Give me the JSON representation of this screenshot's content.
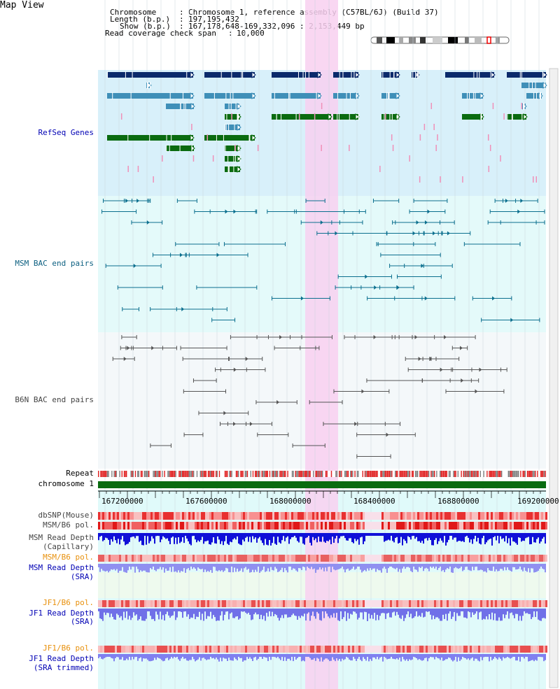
{
  "title": "Map View",
  "header": {
    "chromosome_label": "Chromosome",
    "chromosome_value": "Chromosome 1, reference assembly (C57BL/6J) (Build 37)",
    "length_label": "Length (b.p.)",
    "length_value": "197,195,432",
    "show_label": "Show (b.p.)",
    "show_value": "167,178,648-169,332,096 : 2,153,449 bp",
    "span_label": "Read coverage check span",
    "span_value": "10,000"
  },
  "tracks": {
    "refseq": "RefSeq Genes",
    "msm_bac": "MSM BAC end pairs",
    "b6n_bac": "B6N BAC end pairs",
    "repeat": "Repeat",
    "chromosome": "chromosome 1",
    "dbsnp": "dbSNP(Mouse)",
    "msm_b6_pol_1": "MSM/B6 pol.",
    "msm_read_depth_cap_1": "MSM Read Depth",
    "msm_read_depth_cap_2": "(Capillary)",
    "msm_b6_pol_2": "MSM/B6 pol.",
    "msm_read_depth_sra_1": "MSM Read Depth",
    "msm_read_depth_sra_2": "(SRA)",
    "jf1_b6_pol_1": "JF1/B6 pol.",
    "jf1_read_depth_sra_1": "JF1 Read Depth",
    "jf1_read_depth_sra_2": "(SRA)",
    "jf1_b6_pol_2": "JF1/B6 pol.",
    "jf1_read_depth_trim_1": "JF1 Read Depth",
    "jf1_read_depth_trim_2": "(SRA trimmed)"
  },
  "ruler_ticks": [
    "167200000",
    "167600000",
    "168000000",
    "168400000",
    "168800000",
    "169200000"
  ],
  "colors": {
    "refseq_bg": "#d8f0fa",
    "track_bg": "#e8fafa",
    "highlight": "#f8d0f0",
    "gene_dark": "#0b2a6b",
    "gene_mid": "#3f8fb8",
    "gene_green": "#0a6b10",
    "chromosome_bar": "#0a6b10"
  }
}
